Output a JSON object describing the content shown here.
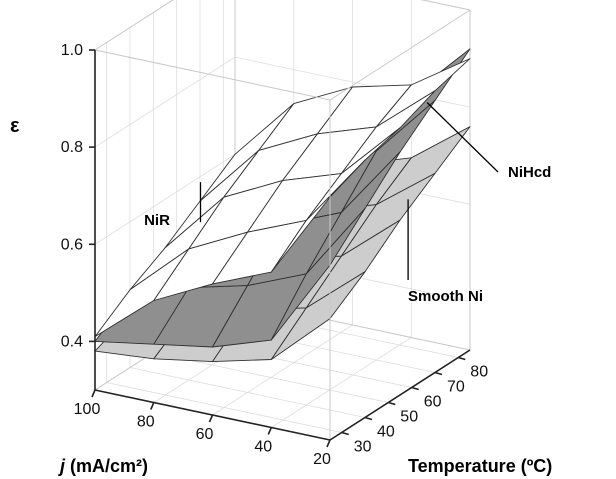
{
  "chart_data": {
    "type": "surface3d",
    "zlabel": "ε",
    "xlabel_italic": "j",
    "xlabel_rest": " (mA/cm²)",
    "ylabel": "Temperature (ºC)",
    "x_ticks": [
      "100",
      "80",
      "60",
      "40",
      "20"
    ],
    "y_ticks": [
      "30",
      "40",
      "50",
      "60",
      "70",
      "80"
    ],
    "z_ticks": [
      "0.4",
      "0.6",
      "0.8",
      "1.0"
    ],
    "x": [
      20,
      40,
      60,
      80,
      100
    ],
    "y": [
      25,
      40,
      55,
      70,
      85
    ],
    "xlim": [
      20,
      100
    ],
    "ylim": [
      25,
      85
    ],
    "zlim": [
      0.3,
      1.0
    ],
    "series": [
      {
        "name": "NiR",
        "z": [
          [
            0.8,
            0.83,
            0.85,
            0.88,
            0.9
          ],
          [
            0.62,
            0.68,
            0.73,
            0.78,
            0.82
          ],
          [
            0.57,
            0.63,
            0.69,
            0.74,
            0.79
          ],
          [
            0.51,
            0.57,
            0.63,
            0.68,
            0.73
          ],
          [
            0.41,
            0.46,
            0.5,
            0.55,
            0.6
          ]
        ]
      },
      {
        "name": "NiHcd",
        "z": [
          [
            0.66,
            0.73,
            0.8,
            0.86,
            0.92
          ],
          [
            0.48,
            0.57,
            0.65,
            0.73,
            0.8
          ],
          [
            0.44,
            0.52,
            0.6,
            0.68,
            0.75
          ],
          [
            0.42,
            0.49,
            0.56,
            0.63,
            0.7
          ],
          [
            0.4,
            0.45,
            0.5,
            0.54,
            0.58
          ]
        ]
      },
      {
        "name": "Smooth Ni",
        "z": [
          [
            0.55,
            0.6,
            0.66,
            0.71,
            0.76
          ],
          [
            0.44,
            0.5,
            0.56,
            0.62,
            0.67
          ],
          [
            0.41,
            0.47,
            0.53,
            0.58,
            0.63
          ],
          [
            0.39,
            0.44,
            0.49,
            0.54,
            0.58
          ],
          [
            0.38,
            0.41,
            0.44,
            0.48,
            0.51
          ]
        ]
      }
    ],
    "colors": {
      "NiR": "#ffffff",
      "NiHcd": "#8f8f8f",
      "Smooth Ni": "#cdcdcd",
      "edge": "#303030"
    }
  }
}
